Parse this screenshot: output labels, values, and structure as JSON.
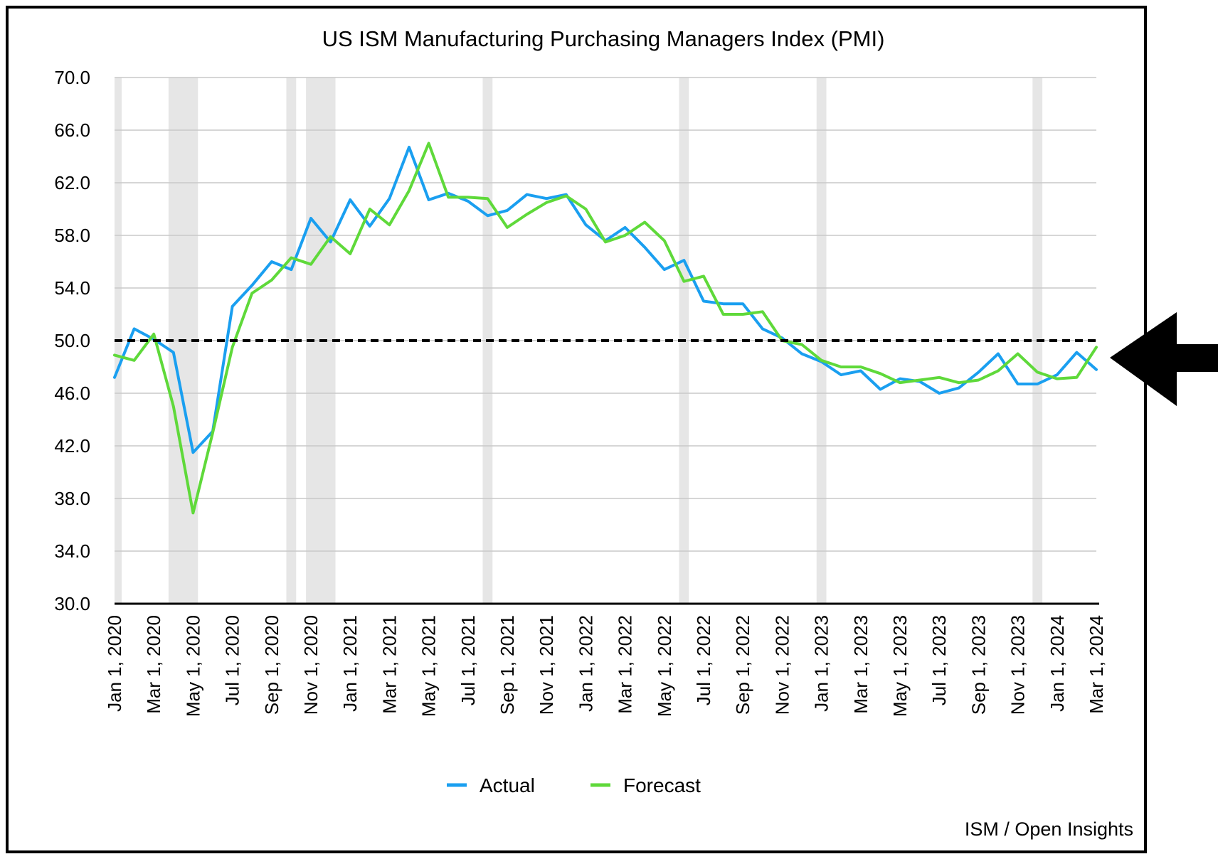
{
  "chart_data": {
    "type": "line",
    "title": "US ISM Manufacturing Purchasing Managers Index (PMI)",
    "xlabel": "",
    "ylabel": "",
    "ylim": [
      30,
      70
    ],
    "y_ticks": [
      "30.0",
      "34.0",
      "38.0",
      "42.0",
      "46.0",
      "50.0",
      "54.0",
      "58.0",
      "62.0",
      "66.0",
      "70.0"
    ],
    "x_ticks": [
      "Jan 1, 2020",
      "Mar 1, 2020",
      "May 1, 2020",
      "Jul 1, 2020",
      "Sep 1, 2020",
      "Nov 1, 2020",
      "Jan 1, 2021",
      "Mar 1, 2021",
      "May 1, 2021",
      "Jul 1, 2021",
      "Sep 1, 2021",
      "Nov 1, 2021",
      "Jan 1, 2022",
      "Mar 1, 2022",
      "May 1, 2022",
      "Jul 1, 2022",
      "Sep 1, 2022",
      "Nov 1, 2022",
      "Jan 1, 2023",
      "Mar 1, 2023",
      "May 1, 2023",
      "Jul 1, 2023",
      "Sep 1, 2023",
      "Nov 1, 2023",
      "Jan 1, 2024",
      "Mar 1, 2024"
    ],
    "x": [
      "2020-01",
      "2020-02",
      "2020-03",
      "2020-04",
      "2020-05",
      "2020-06",
      "2020-07",
      "2020-08",
      "2020-09",
      "2020-10",
      "2020-11",
      "2020-12",
      "2021-01",
      "2021-02",
      "2021-03",
      "2021-04",
      "2021-05",
      "2021-06",
      "2021-07",
      "2021-08",
      "2021-09",
      "2021-10",
      "2021-11",
      "2021-12",
      "2022-01",
      "2022-02",
      "2022-03",
      "2022-04",
      "2022-05",
      "2022-06",
      "2022-07",
      "2022-08",
      "2022-09",
      "2022-10",
      "2022-11",
      "2022-12",
      "2023-01",
      "2023-02",
      "2023-03",
      "2023-04",
      "2023-05",
      "2023-06",
      "2023-07",
      "2023-08",
      "2023-09",
      "2023-10",
      "2023-11",
      "2023-12",
      "2024-01",
      "2024-02",
      "2024-03"
    ],
    "series": [
      {
        "name": "Actual",
        "color": "#1a9ff0",
        "values": [
          47.2,
          50.9,
          50.1,
          49.1,
          41.5,
          43.1,
          52.6,
          54.2,
          56.0,
          55.4,
          59.3,
          57.5,
          60.7,
          58.7,
          60.8,
          64.7,
          60.7,
          61.2,
          60.6,
          59.5,
          59.9,
          61.1,
          60.8,
          61.1,
          58.8,
          57.6,
          58.6,
          57.1,
          55.4,
          56.1,
          53.0,
          52.8,
          52.8,
          50.9,
          50.2,
          49.0,
          48.4,
          47.4,
          47.7,
          46.3,
          47.1,
          46.9,
          46.0,
          46.4,
          47.6,
          49.0,
          46.7,
          46.7,
          47.4,
          49.1,
          47.8
        ]
      },
      {
        "name": "Forecast",
        "color": "#5fd93a",
        "values": [
          48.9,
          48.5,
          50.5,
          45.0,
          36.9,
          43.0,
          49.5,
          53.6,
          54.6,
          56.3,
          55.8,
          57.9,
          56.6,
          60.0,
          58.8,
          61.4,
          65.0,
          60.9,
          60.9,
          60.8,
          58.6,
          59.6,
          60.5,
          61.0,
          60.0,
          57.5,
          58.0,
          59.0,
          57.6,
          54.5,
          54.9,
          52.0,
          52.0,
          52.2,
          50.0,
          49.7,
          48.5,
          48.0,
          48.0,
          47.5,
          46.8,
          47.0,
          47.2,
          46.8,
          47.0,
          47.7,
          49.0,
          47.6,
          47.1,
          47.2,
          49.5
        ]
      }
    ],
    "reference_line": {
      "y": 50.0,
      "style": "dashed",
      "color": "#000000"
    },
    "shaded_periods": [
      [
        "2020-01",
        "2020-01"
      ],
      [
        "2020-04",
        "2020-05"
      ],
      [
        "2020-10",
        "2020-10"
      ],
      [
        "2020-11",
        "2020-12"
      ],
      [
        "2021-08",
        "2021-08"
      ],
      [
        "2022-06",
        "2022-06"
      ],
      [
        "2023-01",
        "2023-01"
      ],
      [
        "2023-12",
        "2023-12"
      ]
    ],
    "grid": true,
    "legend": {
      "position": "bottom-center",
      "entries": [
        "Actual",
        "Forecast"
      ]
    }
  },
  "source_note": "ISM / Open Insights",
  "arrow": {
    "direction": "left",
    "icon": "arrow-left-icon",
    "color": "#000000"
  }
}
